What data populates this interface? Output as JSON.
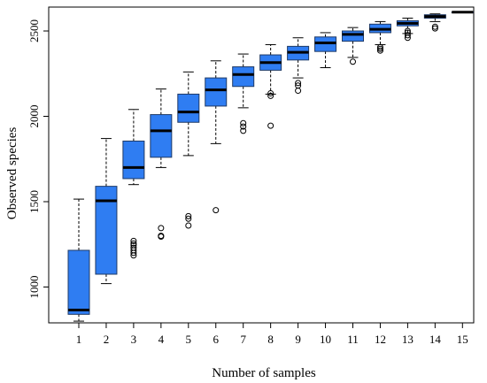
{
  "chart_data": {
    "type": "box",
    "title": "",
    "xlabel": "Number of samples",
    "ylabel": "Observed species",
    "ylim": [
      790,
      2640
    ],
    "yticks": [
      1000,
      1500,
      2000,
      2500
    ],
    "grid": false,
    "colors": {
      "box_fill": "#2f7df2",
      "box_stroke": "#1f3a66",
      "median": "#000000",
      "outlier": "#000000"
    },
    "categories": [
      "1",
      "2",
      "3",
      "4",
      "5",
      "6",
      "7",
      "8",
      "9",
      "10",
      "11",
      "12",
      "13",
      "14",
      "15"
    ],
    "boxes": [
      {
        "x": "1",
        "whisker_low": 800,
        "q1": 840,
        "median": 865,
        "q3": 1215,
        "whisker_high": 1515,
        "outliers": []
      },
      {
        "x": "2",
        "whisker_low": 1020,
        "q1": 1075,
        "median": 1505,
        "q3": 1590,
        "whisker_high": 1870,
        "outliers": []
      },
      {
        "x": "3",
        "whisker_low": 1600,
        "q1": 1635,
        "median": 1700,
        "q3": 1855,
        "whisker_high": 2040,
        "outliers": [
          1185,
          1200,
          1215,
          1230,
          1245,
          1255,
          1270
        ]
      },
      {
        "x": "4",
        "whisker_low": 1700,
        "q1": 1760,
        "median": 1915,
        "q3": 2010,
        "whisker_high": 2160,
        "outliers": [
          1295,
          1300,
          1345
        ]
      },
      {
        "x": "5",
        "whisker_low": 1770,
        "q1": 1965,
        "median": 2025,
        "q3": 2130,
        "whisker_high": 2260,
        "outliers": [
          1360,
          1400,
          1415
        ]
      },
      {
        "x": "6",
        "whisker_low": 1840,
        "q1": 2060,
        "median": 2155,
        "q3": 2225,
        "whisker_high": 2325,
        "outliers": [
          1450
        ]
      },
      {
        "x": "7",
        "whisker_low": 2050,
        "q1": 2175,
        "median": 2245,
        "q3": 2290,
        "whisker_high": 2365,
        "outliers": [
          1915,
          1940,
          1960
        ]
      },
      {
        "x": "8",
        "whisker_low": 2130,
        "q1": 2270,
        "median": 2315,
        "q3": 2360,
        "whisker_high": 2420,
        "outliers": [
          1945,
          2120,
          2135
        ]
      },
      {
        "x": "9",
        "whisker_low": 2225,
        "q1": 2330,
        "median": 2375,
        "q3": 2410,
        "whisker_high": 2460,
        "outliers": [
          2150,
          2180,
          2195
        ]
      },
      {
        "x": "10",
        "whisker_low": 2285,
        "q1": 2380,
        "median": 2430,
        "q3": 2465,
        "whisker_high": 2490,
        "outliers": []
      },
      {
        "x": "11",
        "whisker_low": 2345,
        "q1": 2440,
        "median": 2480,
        "q3": 2500,
        "whisker_high": 2520,
        "outliers": [
          2320
        ]
      },
      {
        "x": "12",
        "whisker_low": 2420,
        "q1": 2490,
        "median": 2510,
        "q3": 2540,
        "whisker_high": 2555,
        "outliers": [
          2385,
          2395,
          2405
        ]
      },
      {
        "x": "13",
        "whisker_low": 2485,
        "q1": 2530,
        "median": 2545,
        "q3": 2560,
        "whisker_high": 2575,
        "outliers": [
          2460,
          2475,
          2490,
          2500
        ]
      },
      {
        "x": "14",
        "whisker_low": 2555,
        "q1": 2575,
        "median": 2585,
        "q3": 2595,
        "whisker_high": 2600,
        "outliers": [
          2515,
          2525
        ]
      },
      {
        "x": "15",
        "whisker_low": 2610,
        "q1": 2610,
        "median": 2610,
        "q3": 2610,
        "whisker_high": 2610,
        "outliers": []
      }
    ]
  }
}
